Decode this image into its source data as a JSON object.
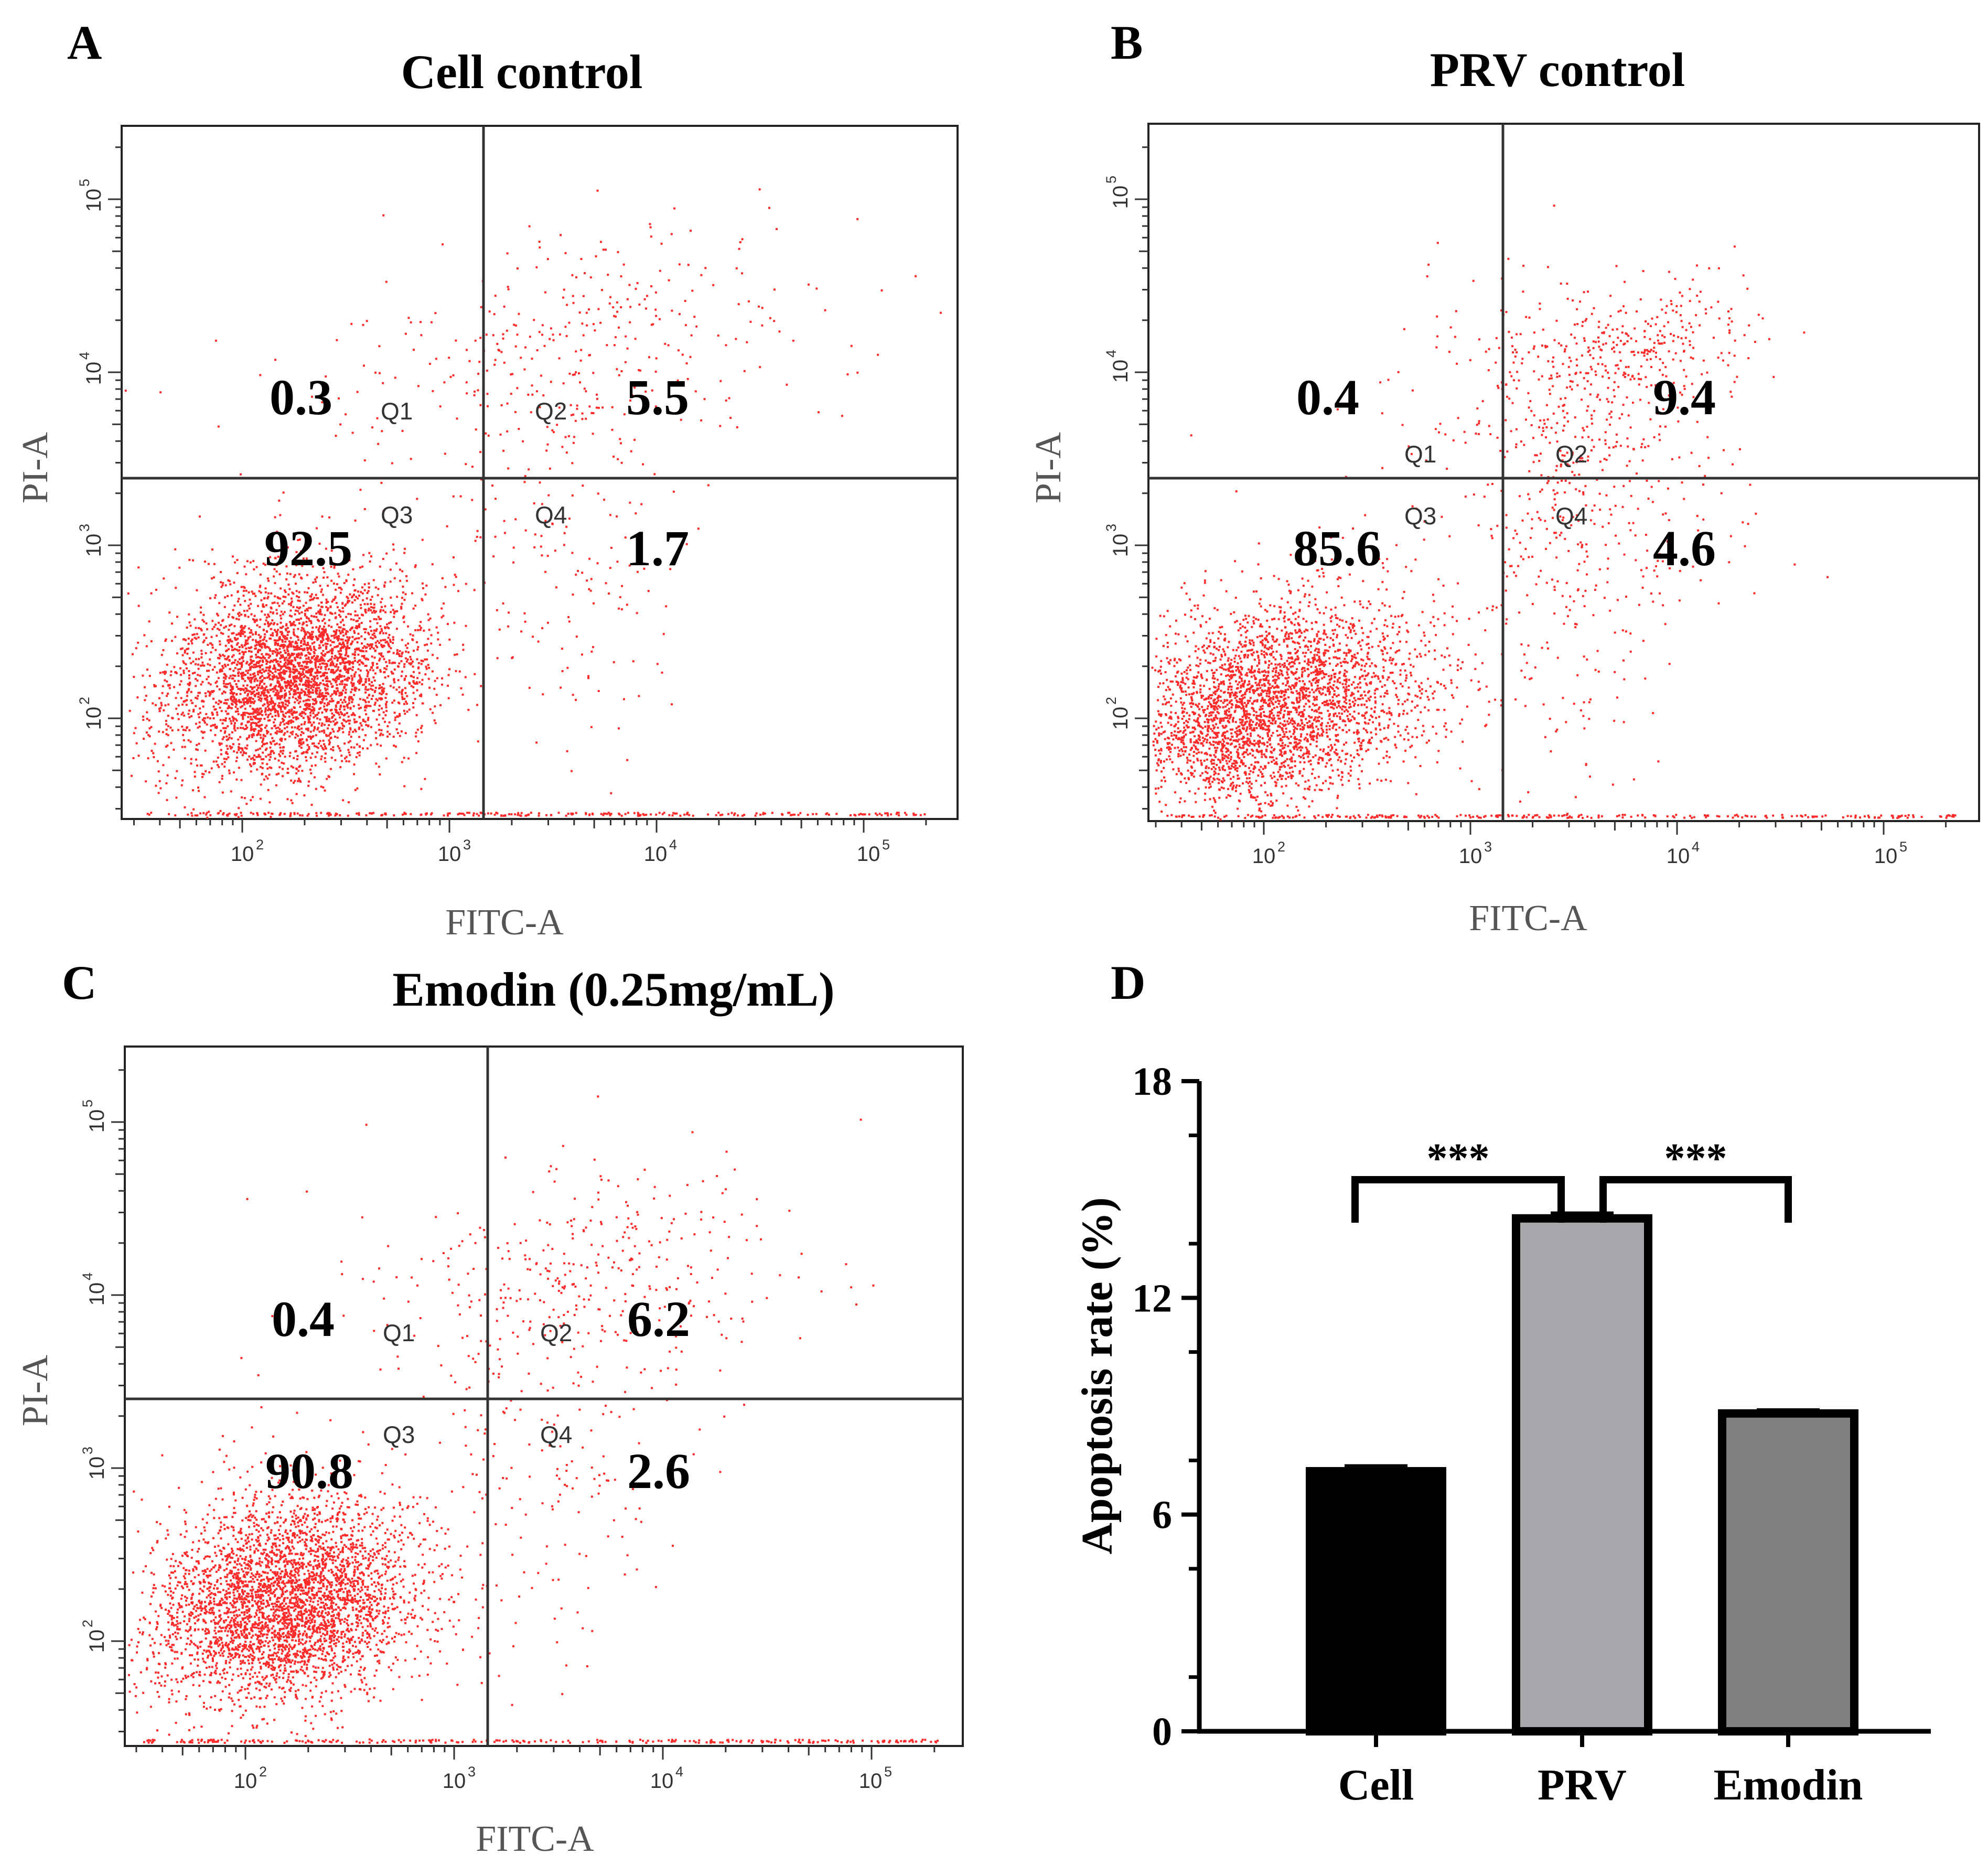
{
  "figure": {
    "panels": [
      {
        "letter": "A",
        "title": "Cell control"
      },
      {
        "letter": "B",
        "title": "PRV control"
      },
      {
        "letter": "C",
        "title": "Emodin (0.25mg/mL)"
      },
      {
        "letter": "D",
        "title": ""
      }
    ]
  },
  "colors": {
    "dots": "#ff2a2a",
    "cell_bar": "#000000",
    "prv_bar": "#a6a6ab",
    "emodin_bar": "#808080"
  },
  "chart_data": [
    {
      "type": "scatter",
      "panel": "A",
      "title": "Cell control",
      "xlabel": "FITC-A",
      "ylabel": "PI-A",
      "x_scale": "log",
      "y_scale": "log",
      "x_ticks": [
        "10^2",
        "10^3",
        "10^4",
        "10^5"
      ],
      "y_ticks": [
        "10^2",
        "10^3",
        "10^4",
        "10^5"
      ],
      "gate": {
        "x": 1400,
        "y": 2500
      },
      "quadrants": [
        {
          "name": "Q1",
          "value": "0.3"
        },
        {
          "name": "Q2",
          "value": "5.5"
        },
        {
          "name": "Q3",
          "value": "92.5"
        },
        {
          "name": "Q4",
          "value": "1.7"
        }
      ]
    },
    {
      "type": "scatter",
      "panel": "B",
      "title": "PRV control",
      "xlabel": "FITC-A",
      "ylabel": "PI-A",
      "x_scale": "log",
      "y_scale": "log",
      "x_ticks": [
        "10^2",
        "10^3",
        "10^4",
        "10^5"
      ],
      "y_ticks": [
        "10^2",
        "10^3",
        "10^4",
        "10^5"
      ],
      "gate": {
        "x": 1400,
        "y": 2500
      },
      "quadrants": [
        {
          "name": "Q1",
          "value": "0.4"
        },
        {
          "name": "Q2",
          "value": "9.4"
        },
        {
          "name": "Q3",
          "value": "85.6"
        },
        {
          "name": "Q4",
          "value": "4.6"
        }
      ]
    },
    {
      "type": "scatter",
      "panel": "C",
      "title": "Emodin (0.25mg/mL)",
      "xlabel": "FITC-A",
      "ylabel": "PI-A",
      "x_scale": "log",
      "y_scale": "log",
      "x_ticks": [
        "10^2",
        "10^3",
        "10^4",
        "10^5"
      ],
      "y_ticks": [
        "10^2",
        "10^3",
        "10^4",
        "10^5"
      ],
      "gate": {
        "x": 1400,
        "y": 2500
      },
      "quadrants": [
        {
          "name": "Q1",
          "value": "0.4"
        },
        {
          "name": "Q2",
          "value": "6.2"
        },
        {
          "name": "Q3",
          "value": "90.8"
        },
        {
          "name": "Q4",
          "value": "2.6"
        }
      ]
    },
    {
      "type": "bar",
      "panel": "D",
      "ylabel": "Apoptosis rate (%)",
      "categories": [
        "Cell",
        "PRV",
        "Emodin"
      ],
      "values": [
        7.2,
        14.2,
        8.8
      ],
      "errors": [
        0.15,
        0.15,
        0.1
      ],
      "ylim": [
        0,
        18
      ],
      "yticks": [
        0,
        6,
        12,
        18
      ],
      "significance": [
        {
          "from": "Cell",
          "to": "PRV",
          "label": "***"
        },
        {
          "from": "PRV",
          "to": "Emodin",
          "label": "***"
        }
      ]
    }
  ]
}
